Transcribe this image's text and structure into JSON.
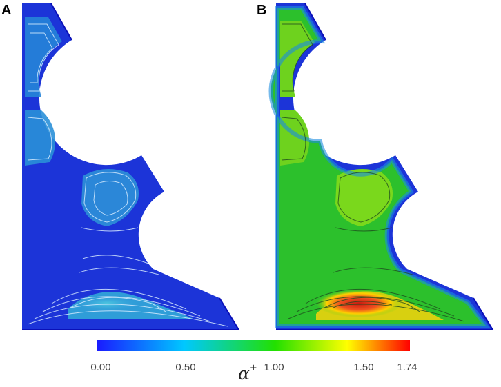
{
  "panels": [
    {
      "label": "A"
    },
    {
      "label": "B"
    }
  ],
  "colorbar": {
    "symbol": "α",
    "superscript": "+",
    "ticks": [
      {
        "value": 0.0,
        "label": "0.00"
      },
      {
        "value": 0.5,
        "label": "0.50"
      },
      {
        "value": 1.0,
        "label": "1.00"
      },
      {
        "value": 1.5,
        "label": "1.50"
      },
      {
        "value": 1.74,
        "label": "1.74"
      }
    ],
    "min": 0.0,
    "max": 1.74,
    "colormap": [
      "#1a1aff",
      "#00c8ff",
      "#22e000",
      "#ffff00",
      "#ff0000"
    ]
  },
  "colors": {
    "panel_a_fill": "#2a8fd8",
    "panel_b_fill": "#5ad21e",
    "boundary": "#1010c8",
    "contour_a": "#d8ecff",
    "contour_b": "#1e4a1e",
    "hotspot_b": "#e02010"
  }
}
